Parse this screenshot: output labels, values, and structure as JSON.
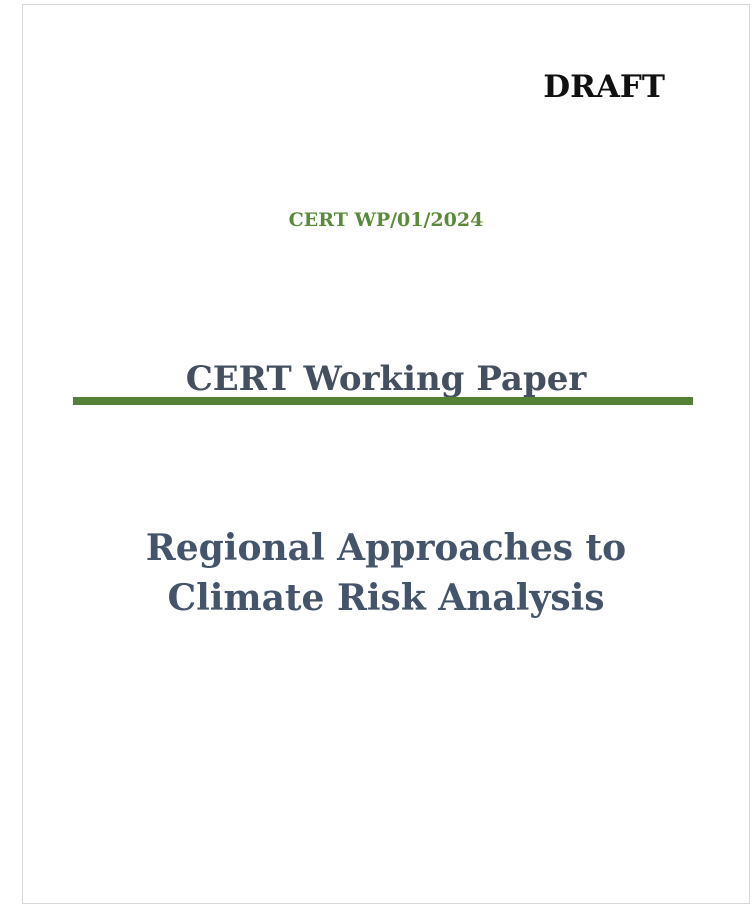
{
  "header": {
    "status": "DRAFT",
    "code": "CERT WP/01/2024"
  },
  "series_title": "CERT Working Paper",
  "title_lines": [
    "Regional Approaches to",
    "Climate Risk Analysis"
  ]
}
